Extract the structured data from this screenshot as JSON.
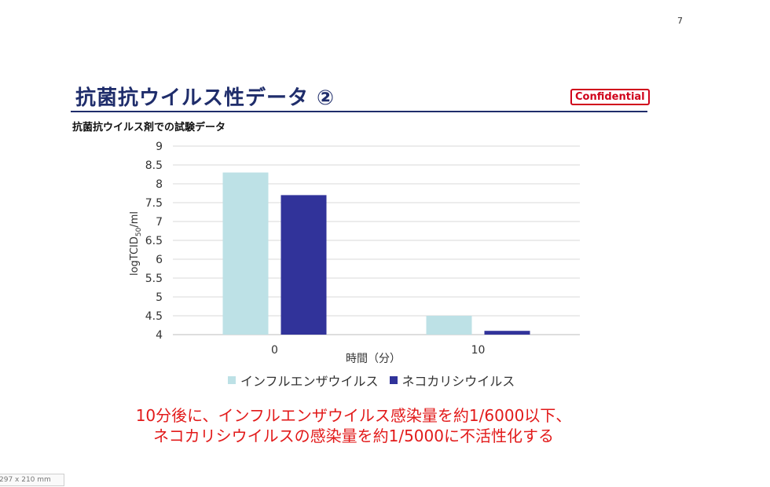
{
  "page": {
    "number": "7",
    "title": "抗菌抗ウイルス性データ ②",
    "badge": "Confidential",
    "subtitle": "抗菌抗ウイルス剤での試験データ",
    "page_size": "297 x 210 mm"
  },
  "chart_data": {
    "type": "bar",
    "categories": [
      "0",
      "10"
    ],
    "series": [
      {
        "name": "インフルエンザウイルス",
        "values": [
          8.3,
          4.5
        ],
        "color": "#bde1e6"
      },
      {
        "name": "ネコカリシウイルス",
        "values": [
          7.7,
          4.1
        ],
        "color": "#31339a"
      }
    ],
    "xlabel": "時間（分）",
    "ylabel_main": "logTCID",
    "ylabel_sub": "50",
    "ylabel_tail": "/ml",
    "ylim": [
      4,
      9
    ],
    "yticks": [
      "4",
      "4.5",
      "5",
      "5.5",
      "6",
      "6.5",
      "7",
      "7.5",
      "8",
      "8.5",
      "9"
    ],
    "grid": true,
    "legend_position": "bottom"
  },
  "conclusion": {
    "line1": "10分後に、インフルエンザウイルス感染量を約1/6000以下、",
    "line2": "ネコカリシウイルスの感染量を約1/5000に不活性化する"
  }
}
